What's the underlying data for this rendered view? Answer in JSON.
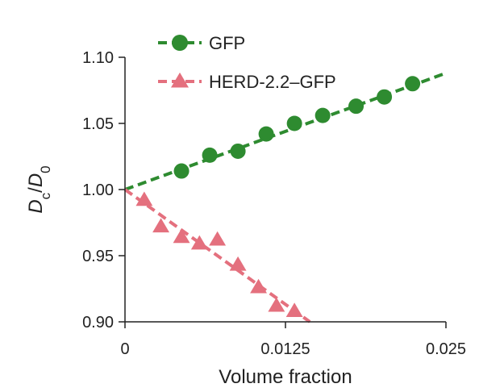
{
  "chart_data": {
    "type": "scatter",
    "xlabel": "Volume fraction",
    "ylabel_parts": {
      "base": "D",
      "sub": "c",
      "sep": "/",
      "base2": "D",
      "sub2": "0"
    },
    "xlim": [
      0,
      0.025
    ],
    "ylim": [
      0.9,
      1.1
    ],
    "x_ticks": [
      0,
      0.0125,
      0.025
    ],
    "x_tick_labels": [
      "0",
      "0.0125",
      "0.025"
    ],
    "y_ticks": [
      0.9,
      0.95,
      1.0,
      1.05,
      1.1
    ],
    "y_tick_labels": [
      "0.90",
      "0.95",
      "1.00",
      "1.05",
      "1.10"
    ],
    "legend_position": "top-left",
    "grid": false,
    "series": [
      {
        "name": "GFP",
        "color": "#2e8b30",
        "marker": "circle",
        "x": [
          0.0044,
          0.0066,
          0.0088,
          0.011,
          0.0132,
          0.0154,
          0.018,
          0.0202,
          0.0224
        ],
        "y": [
          1.014,
          1.026,
          1.029,
          1.042,
          1.05,
          1.056,
          1.063,
          1.07,
          1.08
        ],
        "fit": {
          "x": [
            0,
            0.025
          ],
          "y": [
            1.0,
            1.088
          ]
        }
      },
      {
        "name": "HERD-2.2–GFP",
        "color": "#e4707e",
        "marker": "triangle",
        "x": [
          0.0015,
          0.0028,
          0.0044,
          0.0058,
          0.0072,
          0.0088,
          0.0104,
          0.0118,
          0.0132
        ],
        "y": [
          0.992,
          0.972,
          0.964,
          0.959,
          0.962,
          0.943,
          0.926,
          0.912,
          0.908
        ],
        "fit": {
          "x": [
            0,
            0.0144
          ],
          "y": [
            1.0,
            0.9
          ]
        }
      }
    ]
  }
}
